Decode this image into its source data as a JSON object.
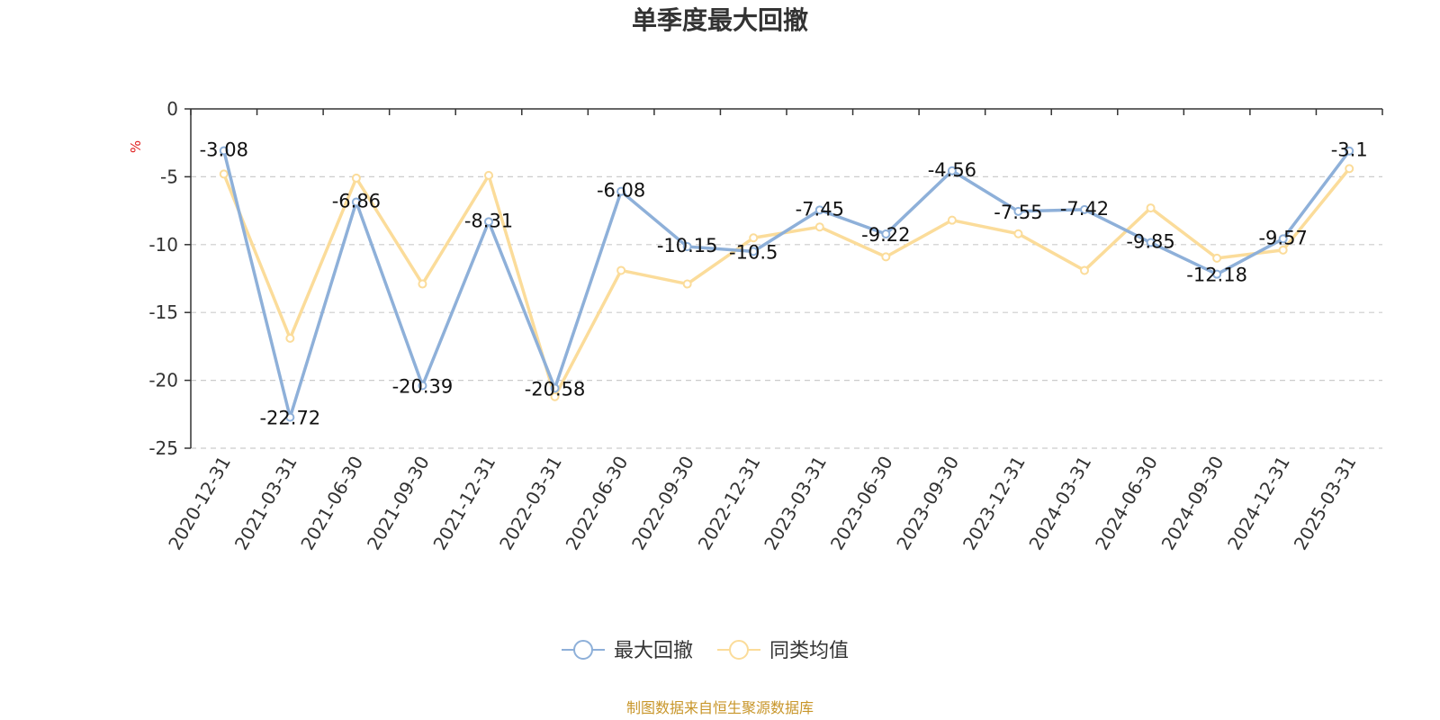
{
  "chart_data": {
    "type": "line",
    "title": "单季度最大回撤",
    "ylabel": "%",
    "ylim": [
      -25,
      0
    ],
    "yticks": [
      0,
      -5,
      -10,
      -15,
      -20,
      -25
    ],
    "categories": [
      "2020-12-31",
      "2021-03-31",
      "2021-06-30",
      "2021-09-30",
      "2021-12-31",
      "2022-03-31",
      "2022-06-30",
      "2022-09-30",
      "2022-12-31",
      "2023-03-31",
      "2023-06-30",
      "2023-09-30",
      "2023-12-31",
      "2024-03-31",
      "2024-06-30",
      "2024-09-30",
      "2024-12-31",
      "2025-03-31"
    ],
    "grid": true,
    "legend_position": "bottom",
    "series": [
      {
        "name": "最大回撤",
        "color": "#8eb0d9",
        "values": [
          -3.08,
          -22.72,
          -6.86,
          -20.39,
          -8.31,
          -20.58,
          -6.08,
          -10.15,
          -10.5,
          -7.45,
          -9.22,
          -4.56,
          -7.55,
          -7.42,
          -9.85,
          -12.18,
          -9.57,
          -3.1
        ],
        "labels": [
          "-3.08",
          "-22.72",
          "-6.86",
          "-20.39",
          "-8.31",
          "-20.58",
          "-6.08",
          "-10.15",
          "-10.5",
          "-7.45",
          "-9.22",
          "-4.56",
          "-7.55",
          "-7.42",
          "-9.85",
          "-12.18",
          "-9.57",
          "-3.1"
        ]
      },
      {
        "name": "同类均值",
        "color": "#fbdc9a",
        "values": [
          -4.8,
          -16.9,
          -5.1,
          -12.9,
          -4.9,
          -21.2,
          -11.9,
          -12.9,
          -9.5,
          -8.7,
          -10.9,
          -8.2,
          -9.2,
          -11.9,
          -7.3,
          -11.0,
          -10.4,
          -4.4
        ]
      }
    ],
    "source": "制图数据来自恒生聚源数据库"
  }
}
